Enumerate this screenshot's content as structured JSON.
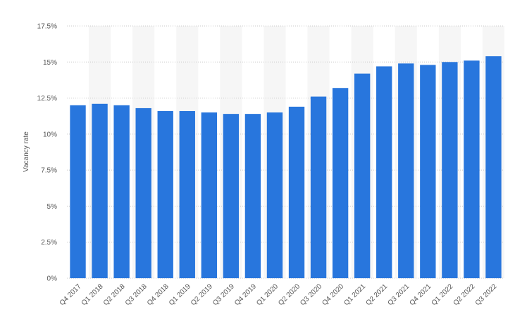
{
  "chart_data": {
    "type": "bar",
    "y_label": "Vacancy rate",
    "categories": [
      "Q4 2017",
      "Q1 2018",
      "Q2 2018",
      "Q3 2018",
      "Q4 2018",
      "Q1 2019",
      "Q2 2019",
      "Q3 2019",
      "Q4 2019",
      "Q1 2020",
      "Q2 2020",
      "Q3 2020",
      "Q4 2020",
      "Q1 2021",
      "Q2 2021",
      "Q3 2021",
      "Q4 2021",
      "Q1 2022",
      "Q2 2022",
      "Q3 2022"
    ],
    "values": [
      12.0,
      12.1,
      12.0,
      11.8,
      11.6,
      11.6,
      11.5,
      11.4,
      11.4,
      11.5,
      11.9,
      12.6,
      13.2,
      14.2,
      14.7,
      14.9,
      14.8,
      15.0,
      15.1,
      15.4
    ],
    "color": "#2876dd",
    "ylim": [
      0,
      17.5
    ],
    "yticks": [
      {
        "value": 0,
        "label": "0%"
      },
      {
        "value": 2.5,
        "label": "2.5%"
      },
      {
        "value": 5,
        "label": "5%"
      },
      {
        "value": 7.5,
        "label": "7.5%"
      },
      {
        "value": 10,
        "label": "10%"
      },
      {
        "value": 12.5,
        "label": "12.5%"
      },
      {
        "value": 15,
        "label": "15%"
      },
      {
        "value": 17.5,
        "label": "17.5%"
      }
    ],
    "grid": true
  }
}
